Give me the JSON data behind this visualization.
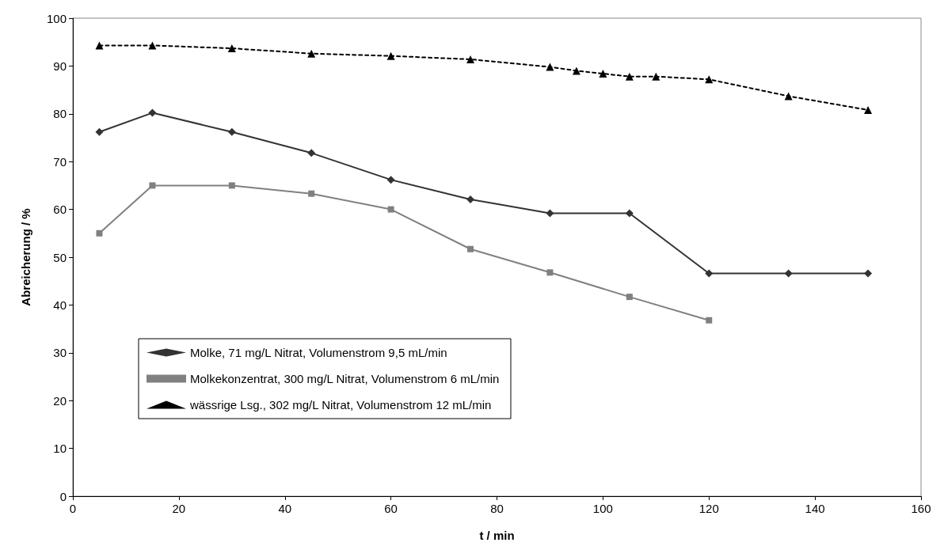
{
  "chart_data": {
    "type": "line",
    "xlabel": "t / min",
    "ylabel": "Abreicherung / %",
    "xlim": [
      0,
      160
    ],
    "xticks": [
      0,
      20,
      40,
      60,
      80,
      100,
      120,
      140,
      160
    ],
    "ylim": [
      0,
      100
    ],
    "yticks": [
      0,
      10,
      20,
      30,
      40,
      50,
      60,
      70,
      80,
      90,
      100
    ],
    "grid": false,
    "legend": "bottom left",
    "series": [
      {
        "name": "Molke, 71 mg/L Nitrat, Volumenstrom 9,5 mL/min",
        "color": "#333333",
        "marker": "diamond",
        "line_style": "solid",
        "x": [
          5,
          15,
          30,
          45,
          60,
          75,
          90,
          105,
          120,
          135,
          150
        ],
        "values": [
          76.2,
          80.2,
          76.2,
          71.8,
          66.2,
          62.1,
          59.2,
          59.2,
          46.6,
          46.6,
          46.6
        ]
      },
      {
        "name": "Molkekonzentrat, 300 mg/L Nitrat, Volumenstrom 6 mL/min",
        "color": "#808080",
        "marker": "square",
        "line_style": "solid",
        "x": [
          5,
          15,
          30,
          45,
          60,
          75,
          90,
          105,
          120
        ],
        "values": [
          55.0,
          65.0,
          65.0,
          63.3,
          60.0,
          51.7,
          46.8,
          41.7,
          36.8
        ]
      },
      {
        "name": "wässrige Lsg., 302 mg/L Nitrat, Volumenstrom 12 mL/min",
        "color": "#000000",
        "marker": "triangle",
        "line_style": "dashed",
        "x": [
          5,
          15,
          30,
          45,
          60,
          75,
          90,
          95,
          100,
          105,
          110,
          120,
          135,
          150
        ],
        "values": [
          94.3,
          94.3,
          93.7,
          92.6,
          92.1,
          91.4,
          89.8,
          89.0,
          88.4,
          87.8,
          87.8,
          87.2,
          83.7,
          80.8
        ]
      }
    ]
  }
}
